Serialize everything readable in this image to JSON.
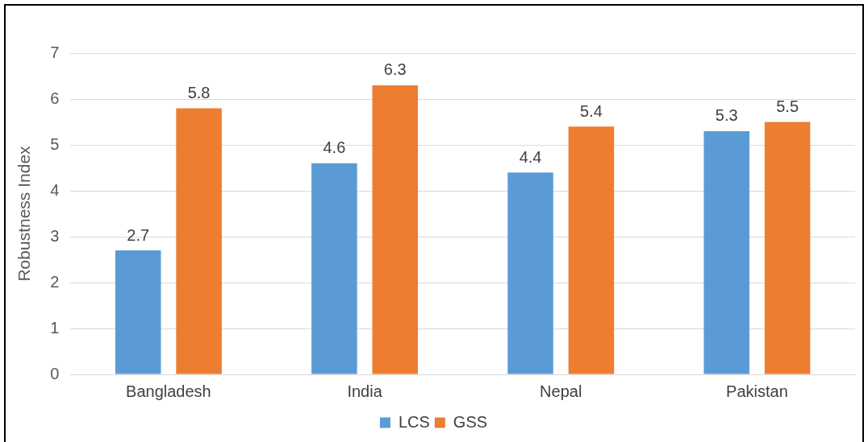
{
  "chart_data": {
    "type": "bar",
    "ylabel": "Robustness Index",
    "categories": [
      "Bangladesh",
      "India",
      "Nepal",
      "Pakistan"
    ],
    "series": [
      {
        "name": "LCS",
        "color": "#5b9bd5",
        "values": [
          2.7,
          4.6,
          4.4,
          5.3
        ]
      },
      {
        "name": "GSS",
        "color": "#ed7d31",
        "values": [
          5.8,
          6.3,
          5.4,
          5.5
        ]
      }
    ],
    "ylim": [
      0,
      7
    ],
    "yticks": [
      0,
      1,
      2,
      3,
      4,
      5,
      6,
      7
    ],
    "grid": "y",
    "legend": "bottom",
    "data_labels": true
  }
}
